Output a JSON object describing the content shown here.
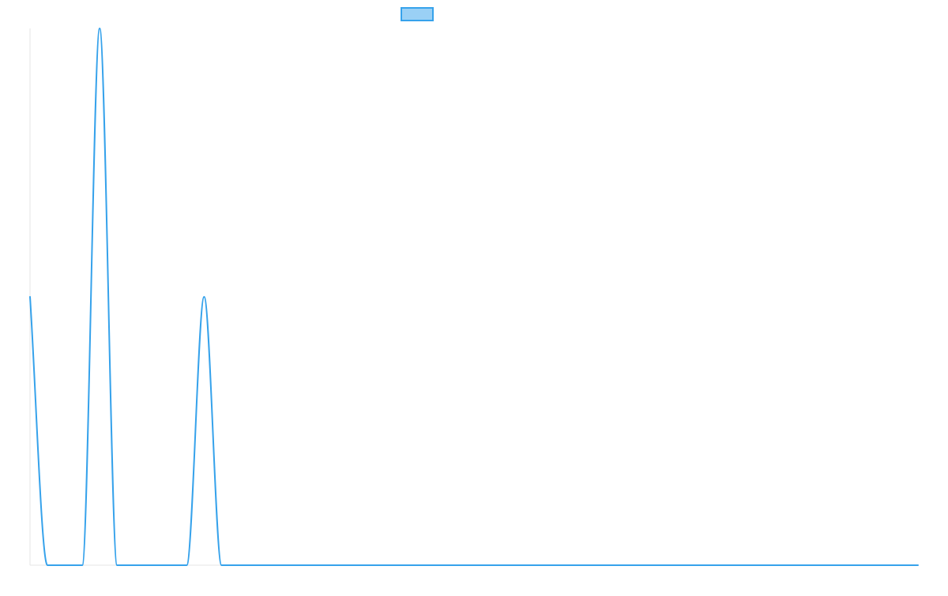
{
  "chart_data": {
    "type": "line",
    "title": "",
    "xlabel": "",
    "ylabel": "",
    "x": [
      0,
      1,
      2,
      3,
      4,
      5,
      6,
      7,
      8,
      9,
      10,
      11,
      12,
      13,
      14,
      15,
      16,
      17,
      18,
      19,
      20,
      21,
      22,
      23,
      24,
      25,
      26,
      27,
      28,
      29,
      30,
      31,
      32,
      33,
      34,
      35,
      36,
      37,
      38,
      39,
      40,
      41,
      42,
      43,
      44,
      45,
      46,
      47,
      48,
      49,
      50,
      51
    ],
    "xlim": [
      0,
      51
    ],
    "ylim": [
      0,
      2
    ],
    "grid": false,
    "legend": {
      "position": "top-center",
      "show_label": false
    },
    "series": [
      {
        "name": "",
        "color": "#36a2eb",
        "fill": "#9ad0f5",
        "values": [
          1,
          0,
          0,
          0,
          2,
          0,
          0,
          0,
          0,
          0,
          1,
          0,
          0,
          0,
          0,
          0,
          0,
          0,
          0,
          0,
          0,
          0,
          0,
          0,
          0,
          0,
          0,
          0,
          0,
          0,
          0,
          0,
          0,
          0,
          0,
          0,
          0,
          0,
          0,
          0,
          0,
          0,
          0,
          0,
          0,
          0,
          0,
          0,
          0,
          0,
          0,
          0
        ]
      }
    ]
  }
}
